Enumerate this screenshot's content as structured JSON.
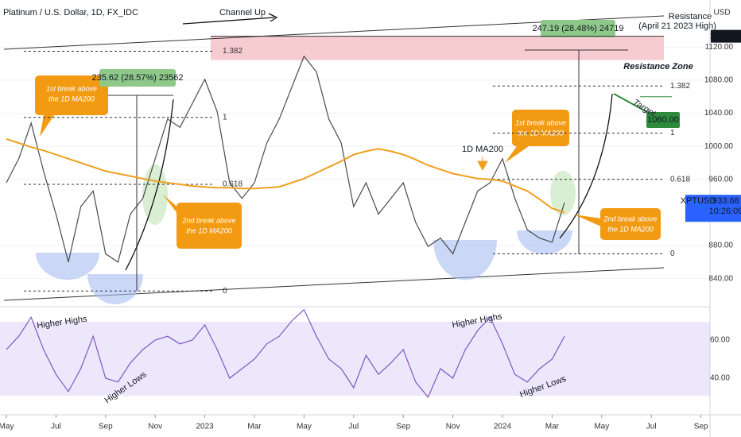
{
  "chart_data": {
    "type": "line",
    "title": "Platinum / U.S. Dollar, 1D, FX_IDC",
    "categories": [
      "May",
      null,
      null,
      null,
      "Jul",
      null,
      null,
      null,
      "Sep",
      null,
      null,
      null,
      "Nov",
      null,
      null,
      null,
      "2023",
      null,
      null,
      null,
      "Mar",
      null,
      null,
      null,
      "May",
      null,
      null,
      null,
      "Jul",
      null,
      null,
      null,
      "Sep",
      null,
      null,
      null,
      "Nov",
      null,
      null,
      null,
      "2024",
      null,
      null,
      null,
      "Mar",
      null,
      null,
      null,
      "May",
      null,
      null,
      null,
      "Jul",
      null,
      null,
      null,
      "Sep"
    ],
    "series": [
      {
        "name": "XPTUSD",
        "color": "#4a4a4a",
        "values": [
          956,
          985,
          1028,
          970,
          918,
          860,
          927,
          946,
          870,
          860,
          918,
          937,
          985,
          1033,
          1023,
          1052,
          1081,
          1042,
          956,
          937,
          956,
          1004,
          1033,
          1071,
          1109,
          1090,
          1033,
          1004,
          927,
          956,
          918,
          937,
          956,
          908,
          879,
          889,
          870,
          908,
          946,
          956,
          985,
          937,
          899,
          889,
          884,
          932,
          null,
          null,
          null,
          null,
          null,
          null,
          null,
          null,
          null,
          null,
          null
        ]
      },
      {
        "name": "1D MA200",
        "color": "#f0a020",
        "values": [
          1009,
          1004,
          999,
          995,
          990,
          985,
          980,
          975,
          970,
          967,
          964,
          961,
          958,
          956,
          954,
          952,
          951,
          950,
          950,
          949,
          949,
          950,
          951,
          956,
          961,
          968,
          975,
          982,
          990,
          994,
          997,
          994,
          990,
          984,
          977,
          972,
          967,
          964,
          961,
          960,
          958,
          952,
          946,
          936,
          925,
          920,
          null,
          null,
          null,
          null,
          null,
          null,
          null,
          null,
          null,
          null,
          null
        ]
      }
    ],
    "ylim": [
      807,
      1177
    ],
    "yticks": [
      {
        "value": 840,
        "label": "840.00"
      },
      {
        "value": 880,
        "label": "880.00"
      },
      {
        "value": 960,
        "label": "960.00"
      },
      {
        "value": 1000,
        "label": "1000.00"
      },
      {
        "value": 1040,
        "label": "1040.00"
      },
      {
        "value": 1080,
        "label": "1080.00"
      },
      {
        "value": 1120,
        "label": "1120.00"
      }
    ],
    "currency": "USD",
    "resistance_price": 1133.15,
    "last_price": 933.68,
    "countdown": "10:26:09",
    "target_price": {
      "value": 1060,
      "label": "1060.00"
    },
    "fib_left": [
      {
        "value": 1115,
        "label": "1.382"
      },
      {
        "value": 1035,
        "label": "1"
      },
      {
        "value": 954,
        "label": "0.618"
      },
      {
        "value": 825,
        "label": "0"
      }
    ],
    "fib_right": [
      {
        "value": 1073,
        "label": "1.382"
      },
      {
        "value": 1016,
        "label": "1"
      },
      {
        "value": 960,
        "label": "0.618"
      },
      {
        "value": 870,
        "label": "0"
      }
    ],
    "rsi": {
      "color": "#7e57c2",
      "ylim": [
        20.8,
        76.7
      ],
      "yticks": [
        {
          "value": 40,
          "label": "40.00"
        },
        {
          "value": 60,
          "label": "60.00"
        }
      ],
      "values": [
        55,
        62,
        72,
        55,
        42,
        33,
        45,
        62,
        40,
        38,
        48,
        55,
        60,
        62,
        58,
        60,
        68,
        55,
        40,
        45,
        50,
        58,
        62,
        70,
        76,
        62,
        50,
        45,
        35,
        52,
        42,
        48,
        55,
        38,
        30,
        45,
        40,
        55,
        65,
        72,
        58,
        42,
        38,
        45,
        50,
        62,
        null,
        null,
        null,
        null,
        null,
        null,
        null,
        null,
        null,
        null,
        null
      ]
    },
    "annotations": [
      "Channel Up",
      "Resistance",
      "(April 21 2023 High)",
      "Resistance Zone",
      "1st break above",
      "the 1D MA200",
      "2nd break above",
      "the 1D MA200",
      "1st break above",
      "the 1D MA200",
      "2nd break above",
      "the 1D MA200",
      "Target",
      "235.62 (28.57%) 23562",
      "247.19 (28.48%) 24719",
      "Higher Highs",
      "Higher Lows",
      "Higher Highs",
      "Higher Lows"
    ]
  }
}
